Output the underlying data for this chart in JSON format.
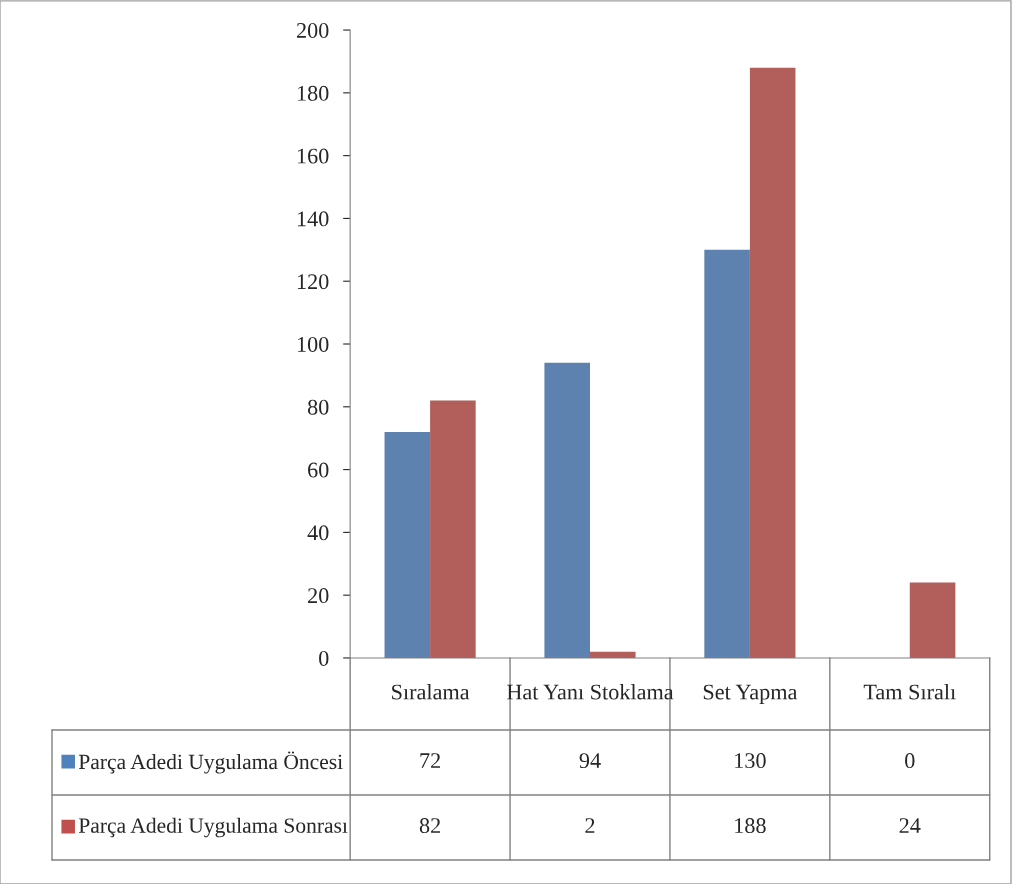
{
  "chart_data": {
    "type": "bar",
    "categories": [
      "Sıralama",
      "Hat Yanı Stoklama",
      "Set Yapma",
      "Tam Sıralı"
    ],
    "series": [
      {
        "name": "Parça Adedi Uygulama Öncesi",
        "color": "#4f81bd",
        "values": [
          72,
          94,
          130,
          0
        ]
      },
      {
        "name": "Parça Adedi Uygulama Sonrası",
        "color": "#c0504d",
        "values": [
          82,
          2,
          188,
          24
        ]
      }
    ],
    "ylim": [
      0,
      200
    ],
    "yticks": [
      0,
      20,
      40,
      60,
      80,
      100,
      120,
      140,
      160,
      180,
      200
    ],
    "grid": false,
    "legend": "bottom",
    "data_labels": true
  }
}
